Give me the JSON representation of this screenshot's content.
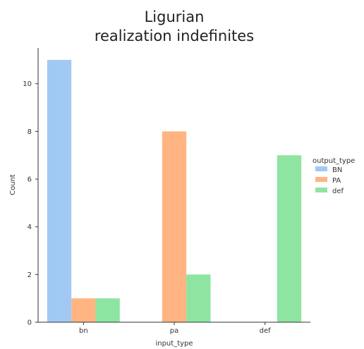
{
  "chart_data": {
    "type": "bar",
    "title_lines": [
      "Ligurian",
      "realization indefinites"
    ],
    "xlabel": "input_type",
    "ylabel": "Count",
    "categories": [
      "bn",
      "pa",
      "def"
    ],
    "ylim": [
      0,
      11.5
    ],
    "yticks": [
      0,
      2,
      4,
      6,
      8,
      10
    ],
    "legend": {
      "title": "output_type",
      "placement": "right"
    },
    "series": [
      {
        "name": "BN",
        "color": "#a1c9f4",
        "values": [
          11,
          0,
          0
        ]
      },
      {
        "name": "PA",
        "color": "#ffb482",
        "values": [
          1,
          8,
          0
        ]
      },
      {
        "name": "def",
        "color": "#8de5a1",
        "values": [
          1,
          2,
          7
        ]
      }
    ]
  }
}
